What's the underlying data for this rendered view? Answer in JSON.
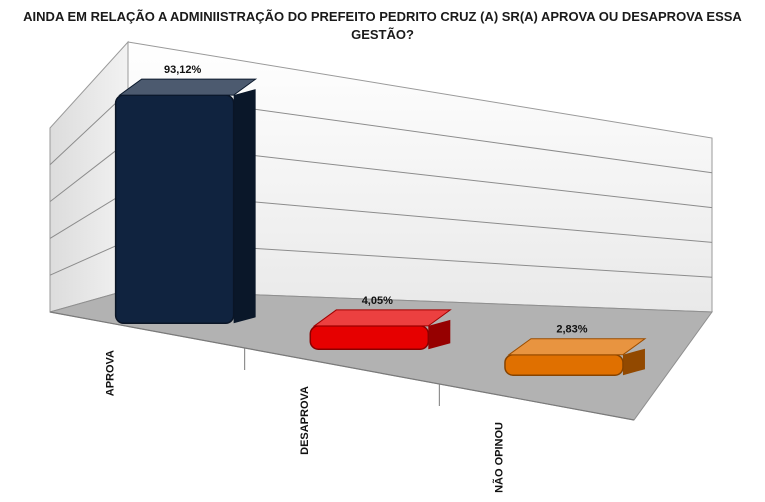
{
  "chart_data": {
    "type": "bar",
    "title": "AINDA EM RELAÇÃO A ADMINIISTRAÇÃO DO PREFEITO PEDRITO CRUZ (A) SR(A) APROVA OU DESAPROVA  ESSA GESTÃO?",
    "categories": [
      "APROVA",
      "DESAPROVA",
      "NÃO OPINOU"
    ],
    "values": [
      93.12,
      4.05,
      2.83
    ],
    "value_labels": [
      "93,12%",
      "4,05%",
      "2,83%"
    ],
    "colors": [
      "#10233f",
      "#e60000",
      "#e07000"
    ],
    "ylim": [
      0,
      100
    ],
    "grid": true,
    "legend": "none",
    "style": "3d-perspective"
  }
}
